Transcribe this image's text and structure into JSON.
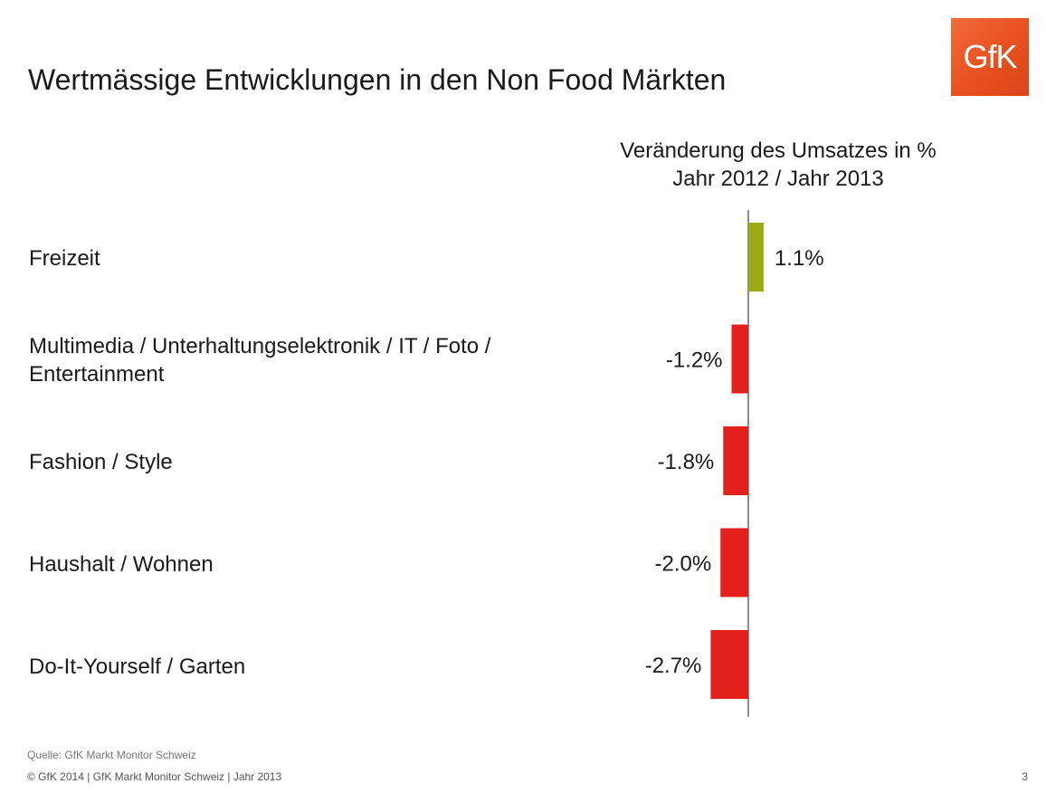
{
  "page": {
    "title": "Wertmässige Entwicklungen in den Non Food Märkten",
    "source": "Quelle: GfK Markt Monitor Schweiz",
    "footer": "© GfK 2014 | GfK Markt Monitor Schweiz | Jahr 2013",
    "page_number": "3"
  },
  "logo": {
    "text": "GfK",
    "color": "#e8501f"
  },
  "colors": {
    "positive": "#9aaa12",
    "negative": "#e3201b",
    "axis": "#666666"
  },
  "chart_data": {
    "type": "bar",
    "orientation": "horizontal",
    "title_lines": [
      "Veränderung des Umsatzes in %",
      "Jahr 2012 / Jahr 2013"
    ],
    "categories": [
      [
        "Freizeit"
      ],
      [
        "Multimedia / Unterhaltungselektronik / IT / Foto /",
        "Entertainment"
      ],
      [
        "Fashion / Style"
      ],
      [
        "Haushalt / Wohnen"
      ],
      [
        "Do-It-Yourself / Garten"
      ]
    ],
    "values": [
      1.1,
      -1.2,
      -1.8,
      -2.0,
      -2.7
    ],
    "value_labels": [
      "1.1%",
      "-1.2%",
      "-1.8%",
      "-2.0%",
      "-2.7%"
    ],
    "unit": "%",
    "grid": false,
    "legend": "none"
  }
}
